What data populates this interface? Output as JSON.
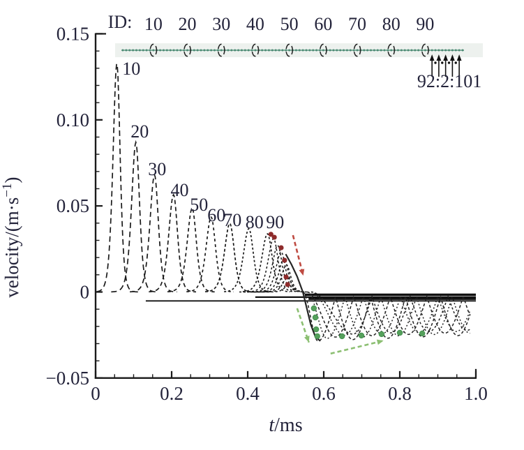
{
  "figure": {
    "background": "#ffffff"
  },
  "chart_data": {
    "type": "line",
    "title": "",
    "xlabel_var": "t",
    "xlabel_unit": "/ms",
    "ylabel_prefix": "velocity/(m·s",
    "ylabel_sup": "−1",
    "ylabel_suffix": ")",
    "xlim": [
      0,
      1.0
    ],
    "ylim": [
      -0.05,
      0.15
    ],
    "xticks": [
      {
        "v": 0.0,
        "label": "0"
      },
      {
        "v": 0.2,
        "label": "0.2"
      },
      {
        "v": 0.4,
        "label": "0.4"
      },
      {
        "v": 0.6,
        "label": "0.6"
      },
      {
        "v": 0.8,
        "label": "0.8"
      },
      {
        "v": 1.0,
        "label": "1.0"
      }
    ],
    "x_minor_step": 0.05,
    "yticks": [
      {
        "v": -0.05,
        "label": "−0.05"
      },
      {
        "v": 0.0,
        "label": "0"
      },
      {
        "v": 0.05,
        "label": "0.05"
      },
      {
        "v": 0.1,
        "label": "0.10"
      },
      {
        "v": 0.15,
        "label": "0.15"
      }
    ],
    "y_minor_step": 0.01,
    "text_color": "#23233a",
    "curve_color": "#1a1a1a",
    "grid": false,
    "pulses": [
      {
        "id": "10",
        "t": 0.056,
        "v": 0.133,
        "s": 0.0135,
        "label_t": 0.094,
        "label_v": 0.13,
        "dash": "8 5"
      },
      {
        "id": "20",
        "t": 0.106,
        "v": 0.087,
        "s": 0.015,
        "label_t": 0.116,
        "label_v": 0.0934,
        "dash": "8 5"
      },
      {
        "id": "30",
        "t": 0.155,
        "v": 0.068,
        "s": 0.016,
        "label_t": 0.162,
        "label_v": 0.0715,
        "dash": "7 5"
      },
      {
        "id": "40",
        "t": 0.205,
        "v": 0.0565,
        "s": 0.0168,
        "label_t": 0.221,
        "label_v": 0.0594,
        "dash": "6 4"
      },
      {
        "id": "50",
        "t": 0.254,
        "v": 0.0487,
        "s": 0.0175,
        "label_t": 0.272,
        "label_v": 0.0509,
        "dash": "5 4"
      },
      {
        "id": "60",
        "t": 0.304,
        "v": 0.0435,
        "s": 0.018,
        "label_t": 0.318,
        "label_v": 0.0448,
        "dash": "4 4"
      },
      {
        "id": "70",
        "t": 0.353,
        "v": 0.0398,
        "s": 0.0185,
        "label_t": 0.36,
        "label_v": 0.042,
        "dash": "4 3"
      },
      {
        "id": "80",
        "t": 0.403,
        "v": 0.0368,
        "s": 0.019,
        "label_t": 0.418,
        "label_v": 0.0407,
        "dash": "3 3"
      },
      {
        "id": "90",
        "t": 0.452,
        "v": 0.0338,
        "s": 0.0195,
        "label_t": 0.472,
        "label_v": 0.0407,
        "dash": "3 3"
      }
    ],
    "cluster_pulses": [
      {
        "t": 0.468,
        "v": 0.031,
        "s": 0.019
      },
      {
        "t": 0.479,
        "v": 0.027,
        "s": 0.0185
      },
      {
        "t": 0.488,
        "v": 0.0233,
        "s": 0.018
      },
      {
        "t": 0.4955,
        "v": 0.0196,
        "s": 0.0175
      },
      {
        "t": 0.502,
        "v": 0.0158,
        "s": 0.017
      },
      {
        "t": 0.5045,
        "v": 0.0085,
        "s": 0.016
      },
      {
        "t": 0.508,
        "v": 0.004,
        "s": 0.015
      }
    ],
    "descent_path": [
      [
        0.5,
        0.022
      ],
      [
        0.515,
        0.016
      ],
      [
        0.53,
        0.009
      ],
      [
        0.545,
        0.0
      ],
      [
        0.556,
        -0.01
      ],
      [
        0.566,
        -0.019
      ],
      [
        0.578,
        -0.026
      ],
      [
        0.591,
        -0.0285
      ]
    ],
    "oscillations": [
      {
        "tz": 0.545,
        "m1": 0.585,
        "d": 0.0285,
        "P": 0.092,
        "dash": "4 3"
      },
      {
        "tz": 0.557,
        "m1": 0.609,
        "d": 0.027,
        "P": 0.094,
        "dash": "2 3"
      },
      {
        "tz": 0.556,
        "m1": 0.631,
        "d": 0.0262,
        "P": 0.096,
        "dash": "4 3"
      },
      {
        "tz": 0.567,
        "m1": 0.655,
        "d": 0.0252,
        "P": 0.098,
        "dash": "2 3"
      },
      {
        "tz": 0.567,
        "m1": 0.677,
        "d": 0.0245,
        "P": 0.1,
        "dash": "3 3"
      }
    ],
    "baselines": [
      {
        "v": -0.0052,
        "t0": 0.132,
        "t1": 1.0,
        "w": 1.8
      },
      {
        "v": -0.003,
        "t0": 0.42,
        "t1": 1.0,
        "w": 2.2
      },
      {
        "v": -0.0016,
        "t0": 0.55,
        "t1": 1.0,
        "w": 3.4
      },
      {
        "v": -0.004,
        "t0": 0.56,
        "t1": 1.0,
        "w": 3.0
      }
    ],
    "red_dots": [
      [
        0.461,
        0.0335
      ],
      [
        0.47,
        0.0318
      ],
      [
        0.488,
        0.0257
      ],
      [
        0.497,
        0.0184
      ],
      [
        0.501,
        0.0087
      ],
      [
        0.505,
        0.0043
      ]
    ],
    "green_descent_dots": [
      [
        0.574,
        -0.0095
      ],
      [
        0.578,
        -0.0148
      ],
      [
        0.58,
        -0.0217
      ],
      [
        0.583,
        -0.0257
      ]
    ],
    "green_min_dots": [
      [
        0.648,
        -0.0257
      ],
      [
        0.699,
        -0.0253
      ],
      [
        0.752,
        -0.0245
      ],
      [
        0.8,
        -0.0237
      ],
      [
        0.859,
        -0.0241
      ]
    ],
    "red_dot_color": "#8e2b2b",
    "green_dot_color": "#55a05c",
    "arrows": [
      {
        "name": "red-decay-arrow",
        "from": [
          0.519,
          0.033
        ],
        "to": [
          0.546,
          0.0095
        ],
        "color": "#bf4b42"
      },
      {
        "name": "green-descent-arrow",
        "from": [
          0.53,
          -0.0095
        ],
        "to": [
          0.561,
          -0.0293
        ],
        "color": "#8cbf72"
      },
      {
        "name": "green-trend-arrow",
        "from": [
          0.618,
          -0.0358
        ],
        "to": [
          0.757,
          -0.0283
        ],
        "color": "#8cbf72"
      }
    ],
    "chain": {
      "n": 101,
      "marker_ids": [
        10,
        20,
        30,
        40,
        50,
        60,
        70,
        80,
        90
      ],
      "arrow_ids": [
        92,
        94,
        96,
        98,
        100
      ],
      "dot_ids": [
        93,
        95,
        97,
        99
      ],
      "color": "#4c8b74",
      "band_color": "#edf1ee",
      "marker_color": "#222222",
      "annotation": "92:2:101"
    },
    "id_row": {
      "title": "ID:",
      "labels": [
        "10",
        "20",
        "30",
        "40",
        "50",
        "60",
        "70",
        "80",
        "90"
      ]
    }
  }
}
